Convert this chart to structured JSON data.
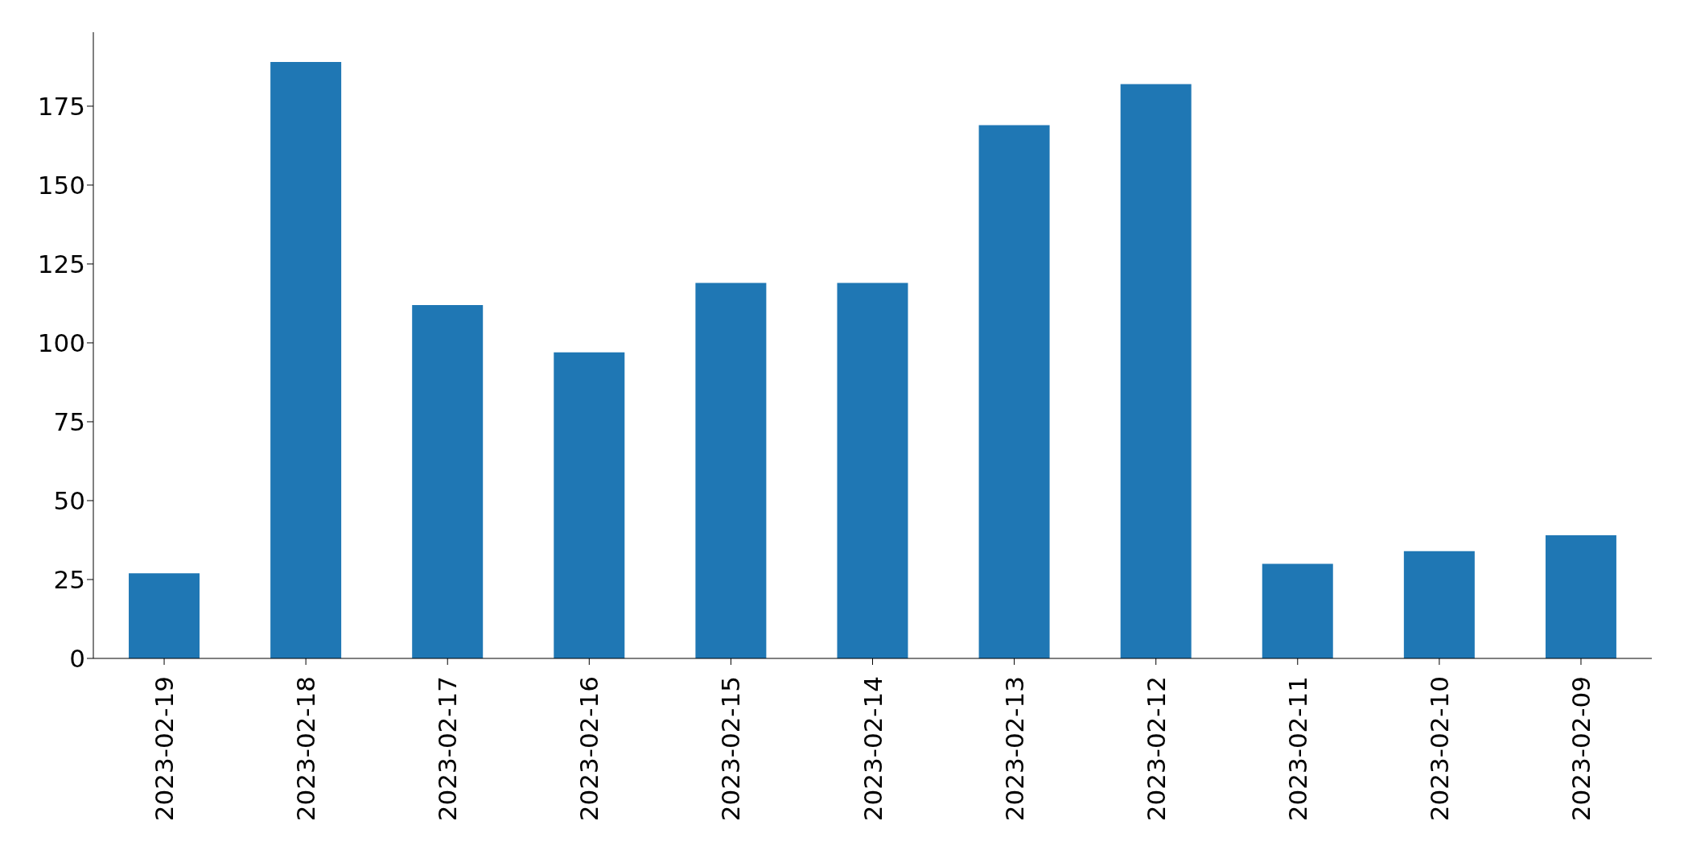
{
  "chart_data": {
    "type": "bar",
    "categories": [
      "2023-02-19",
      "2023-02-18",
      "2023-02-17",
      "2023-02-16",
      "2023-02-15",
      "2023-02-14",
      "2023-02-13",
      "2023-02-12",
      "2023-02-11",
      "2023-02-10",
      "2023-02-09"
    ],
    "values": [
      27,
      189,
      112,
      97,
      119,
      119,
      169,
      182,
      30,
      34,
      39
    ],
    "color": "#1f77b4",
    "ylim": [
      0,
      198.45
    ],
    "yticks": [
      0,
      25,
      50,
      75,
      100,
      125,
      150,
      175
    ],
    "grid": false,
    "legend": false
  }
}
